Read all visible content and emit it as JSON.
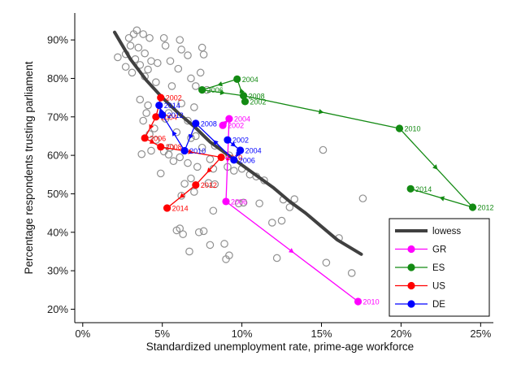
{
  "chart_data": {
    "type": "scatter",
    "title": "",
    "xlabel": "Standardized unemployment rate, prime-age workforce",
    "ylabel": "Percentage respondents trusting parliament",
    "xlim": [
      -0.5,
      25.8
    ],
    "ylim": [
      16.5,
      97
    ],
    "xticks": [
      0,
      5,
      10,
      15,
      20,
      25
    ],
    "xtick_labels": [
      "0%",
      "5%",
      "10%",
      "15%",
      "20%",
      "25%"
    ],
    "yticks": [
      20,
      30,
      40,
      50,
      60,
      70,
      80,
      90
    ],
    "ytick_labels": [
      "20%",
      "30%",
      "40%",
      "50%",
      "60%",
      "70%",
      "80%",
      "90%"
    ],
    "legend": {
      "position": "bottom-right",
      "entries": [
        {
          "label": "lowess",
          "color": "#404040",
          "kind": "line"
        },
        {
          "label": "GR",
          "color": "#ff00ff",
          "kind": "line-marker"
        },
        {
          "label": "ES",
          "color": "#138a13",
          "kind": "line-marker"
        },
        {
          "label": "US",
          "color": "#ff0000",
          "kind": "line-marker"
        },
        {
          "label": "DE",
          "color": "#0000ff",
          "kind": "line-marker"
        }
      ]
    },
    "lowess": {
      "name": "lowess",
      "color": "#404040",
      "x": [
        2.0,
        3.0,
        4.0,
        5.0,
        6.0,
        7.0,
        8.0,
        9.0,
        10.0,
        11.0,
        12.0,
        13.0,
        14.0,
        15.0,
        16.0,
        17.5
      ],
      "y": [
        92,
        85,
        79.5,
        75,
        71,
        67.5,
        63.5,
        60.5,
        57.5,
        54.5,
        51.5,
        48,
        45,
        41.5,
        38,
        34.3
      ]
    },
    "background": {
      "name": "other countries",
      "color": "#909090",
      "points": [
        [
          2.2,
          85.5
        ],
        [
          2.7,
          86.3
        ],
        [
          2.9,
          90.5
        ],
        [
          3.2,
          91.5
        ],
        [
          3.4,
          92.5
        ],
        [
          3.8,
          91.5
        ],
        [
          4.2,
          90.5
        ],
        [
          3.0,
          88.5
        ],
        [
          3.5,
          88.0
        ],
        [
          3.9,
          86.5
        ],
        [
          3.3,
          85.0
        ],
        [
          3.6,
          83.5
        ],
        [
          4.3,
          84.5
        ],
        [
          4.7,
          84.0
        ],
        [
          4.1,
          82.3
        ],
        [
          3.9,
          80.5
        ],
        [
          3.1,
          81.5
        ],
        [
          2.7,
          83.0
        ],
        [
          5.1,
          90.5
        ],
        [
          5.2,
          88.5
        ],
        [
          5.5,
          84.5
        ],
        [
          6.1,
          90.0
        ],
        [
          6.2,
          87.5
        ],
        [
          6.6,
          86.0
        ],
        [
          7.5,
          88.0
        ],
        [
          7.6,
          86.2
        ],
        [
          6.0,
          82.5
        ],
        [
          7.4,
          81.5
        ],
        [
          6.8,
          80.0
        ],
        [
          7.1,
          78.0
        ],
        [
          7.8,
          77.0
        ],
        [
          5.6,
          78.0
        ],
        [
          4.6,
          79.0
        ],
        [
          6.2,
          73.5
        ],
        [
          7.0,
          72.5
        ],
        [
          3.6,
          74.5
        ],
        [
          4.1,
          73.0
        ],
        [
          4.0,
          71.0
        ],
        [
          3.8,
          69.0
        ],
        [
          4.5,
          67.0
        ],
        [
          4.2,
          65.5
        ],
        [
          3.7,
          60.3
        ],
        [
          4.3,
          61.2
        ],
        [
          5.1,
          61.0
        ],
        [
          5.4,
          60.2
        ],
        [
          6.1,
          59.5
        ],
        [
          5.7,
          58.5
        ],
        [
          6.6,
          58.0
        ],
        [
          7.2,
          57.0
        ],
        [
          8.2,
          56.5
        ],
        [
          9.1,
          57.0
        ],
        [
          10.0,
          56.5
        ],
        [
          10.5,
          55.0
        ],
        [
          10.9,
          54.5
        ],
        [
          11.4,
          53.5
        ],
        [
          9.5,
          56.0
        ],
        [
          8.3,
          52.5
        ],
        [
          7.9,
          52.8
        ],
        [
          6.4,
          52.6
        ],
        [
          6.8,
          54.0
        ],
        [
          4.9,
          55.3
        ],
        [
          6.2,
          49.5
        ],
        [
          7.0,
          50.5
        ],
        [
          9.8,
          47.5
        ],
        [
          11.1,
          47.5
        ],
        [
          12.6,
          48.5
        ],
        [
          13.3,
          48.6
        ],
        [
          13.0,
          46.5
        ],
        [
          12.5,
          43.0
        ],
        [
          11.9,
          42.5
        ],
        [
          8.2,
          45.6
        ],
        [
          6.1,
          41.0
        ],
        [
          5.9,
          40.5
        ],
        [
          6.3,
          39.5
        ],
        [
          7.6,
          40.3
        ],
        [
          7.3,
          40.0
        ],
        [
          8.0,
          36.7
        ],
        [
          8.9,
          37.0
        ],
        [
          6.7,
          35.0
        ],
        [
          9.2,
          34.0
        ],
        [
          9.0,
          33.0
        ],
        [
          12.2,
          33.3
        ],
        [
          15.3,
          32.1
        ],
        [
          16.1,
          38.5
        ],
        [
          16.9,
          29.4
        ],
        [
          15.1,
          61.4
        ],
        [
          17.6,
          48.8
        ],
        [
          9.2,
          60.0
        ],
        [
          8.3,
          62.5
        ],
        [
          8.0,
          59.0
        ],
        [
          10.1,
          47.7
        ],
        [
          6.8,
          64.5
        ],
        [
          7.5,
          62.0
        ],
        [
          5.5,
          62.0
        ],
        [
          4.6,
          64.0
        ],
        [
          5.9,
          66.0
        ],
        [
          6.6,
          69.0
        ],
        [
          7.1,
          65.0
        ],
        [
          5.2,
          69.5
        ],
        [
          5.4,
          71.0
        ]
      ]
    },
    "series": [
      {
        "name": "GR",
        "color": "#ff00ff",
        "points": [
          {
            "year": "2002",
            "x": 8.8,
            "y": 67.8
          },
          {
            "year": "2004",
            "x": 9.2,
            "y": 69.5
          },
          {
            "year": "2006",
            "x": 9.0,
            "y": 48.0
          },
          {
            "year": "2010",
            "x": 17.3,
            "y": 22.0
          }
        ]
      },
      {
        "name": "ES",
        "color": "#138a13",
        "points": [
          {
            "year": "2002",
            "x": 10.2,
            "y": 74.0
          },
          {
            "year": "2004",
            "x": 9.7,
            "y": 79.8
          },
          {
            "year": "2006",
            "x": 7.5,
            "y": 77.0
          },
          {
            "year": "2008",
            "x": 10.1,
            "y": 75.5
          },
          {
            "year": "2010",
            "x": 19.9,
            "y": 67.0
          },
          {
            "year": "2012",
            "x": 24.5,
            "y": 46.5
          },
          {
            "year": "2014",
            "x": 20.6,
            "y": 51.3
          }
        ]
      },
      {
        "name": "US",
        "color": "#ff0000",
        "points": [
          {
            "year": "2002",
            "x": 4.9,
            "y": 75.0
          },
          {
            "year": "2004",
            "x": 4.6,
            "y": 70.0
          },
          {
            "year": "2006",
            "x": 3.9,
            "y": 64.5
          },
          {
            "year": "2008",
            "x": 4.9,
            "y": 62.2
          },
          {
            "year": "2010",
            "x": 8.7,
            "y": 59.5
          },
          {
            "year": "2012",
            "x": 7.1,
            "y": 52.3
          },
          {
            "year": "2014",
            "x": 5.3,
            "y": 46.3
          }
        ]
      },
      {
        "name": "DE",
        "color": "#0000ff",
        "points": [
          {
            "year": "2002",
            "x": 9.1,
            "y": 64.0
          },
          {
            "year": "2004",
            "x": 9.9,
            "y": 61.3
          },
          {
            "year": "2006",
            "x": 9.5,
            "y": 58.8
          },
          {
            "year": "2008",
            "x": 7.1,
            "y": 68.3
          },
          {
            "year": "2010",
            "x": 6.4,
            "y": 61.2
          },
          {
            "year": "2012",
            "x": 5.0,
            "y": 70.5
          },
          {
            "year": "2014",
            "x": 4.8,
            "y": 73.0
          }
        ]
      }
    ]
  }
}
